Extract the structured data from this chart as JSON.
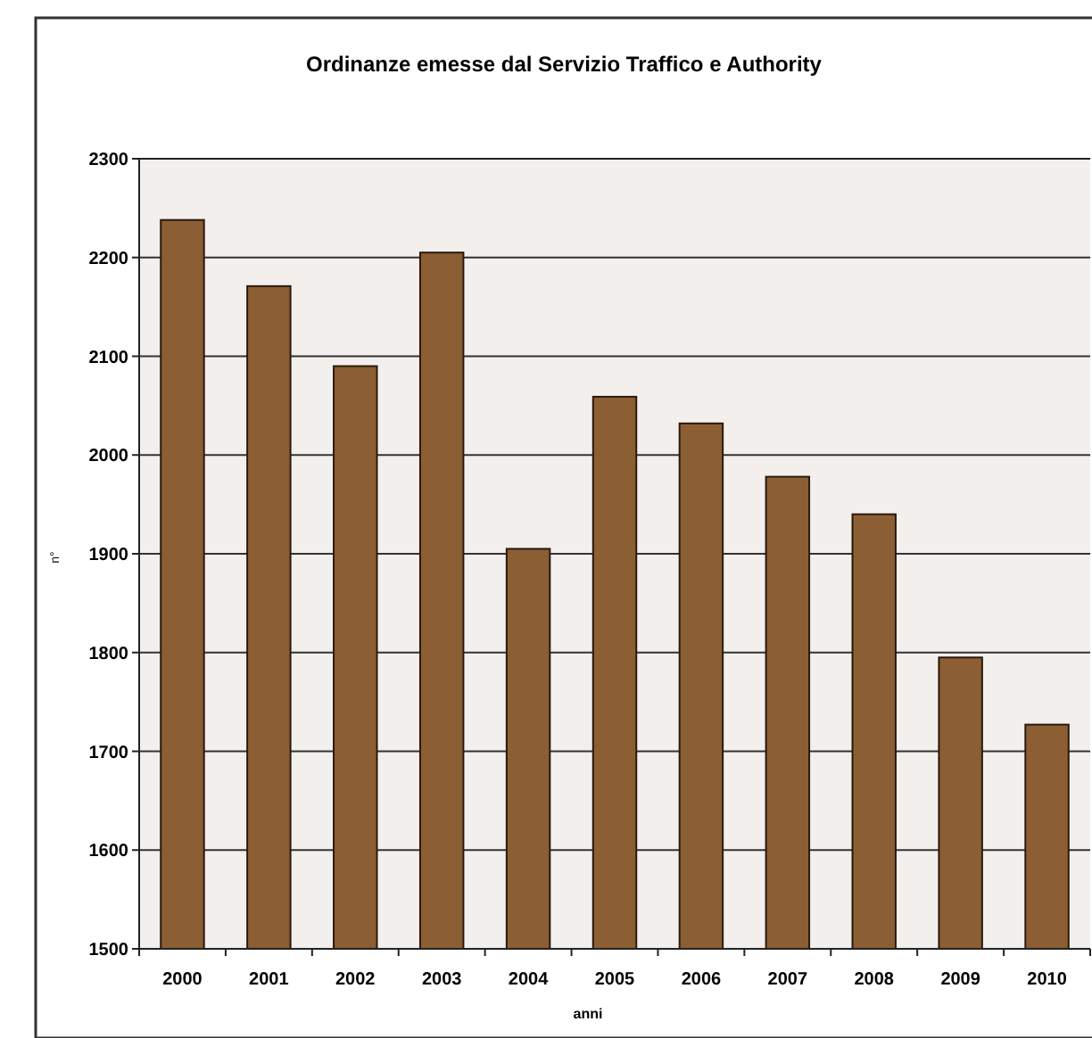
{
  "chart_data": {
    "type": "bar",
    "title": "Ordinanze emesse dal Servizio Traffico e Authority",
    "xlabel": "anni",
    "ylabel": "n°",
    "categories": [
      "2000",
      "2001",
      "2002",
      "2003",
      "2004",
      "2005",
      "2006",
      "2007",
      "2008",
      "2009",
      "2010"
    ],
    "values": [
      2238,
      2171,
      2090,
      2205,
      1905,
      2059,
      2032,
      1978,
      1940,
      1795,
      1727
    ],
    "color": "#8b5e34",
    "ylim": [
      1500,
      2300
    ],
    "yticks": [
      1500,
      1600,
      1700,
      1800,
      1900,
      2000,
      2100,
      2200,
      2300
    ],
    "grid": "y"
  }
}
